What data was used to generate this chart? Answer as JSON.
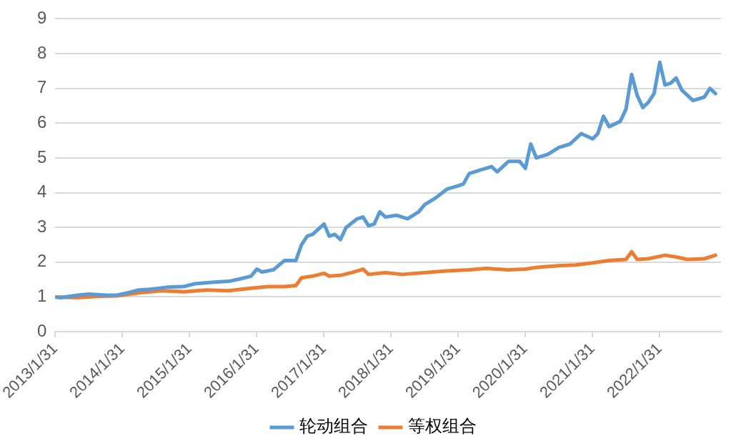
{
  "chart_data": {
    "type": "line",
    "legend": "bottom",
    "grid": "y",
    "marker": "none",
    "line_style": "solid",
    "xlim": [
      "2013-01-31",
      "2022-12-31"
    ],
    "xticks": [
      {
        "value": "2013-01-31",
        "label": "2013/1/31"
      },
      {
        "value": "2014-01-31",
        "label": "2014/1/31"
      },
      {
        "value": "2015-01-31",
        "label": "2015/1/31"
      },
      {
        "value": "2016-01-31",
        "label": "2016/1/31"
      },
      {
        "value": "2017-01-31",
        "label": "2017/1/31"
      },
      {
        "value": "2018-01-31",
        "label": "2018/1/31"
      },
      {
        "value": "2019-01-31",
        "label": "2019/1/31"
      },
      {
        "value": "2020-01-31",
        "label": "2020/1/31"
      },
      {
        "value": "2021-01-31",
        "label": "2021/1/31"
      },
      {
        "value": "2022-01-31",
        "label": "2022/1/31"
      }
    ],
    "ylim": [
      0,
      9
    ],
    "yticks": [
      0,
      1,
      2,
      3,
      4,
      5,
      6,
      7,
      8,
      9
    ],
    "series": [
      {
        "name": "轮动组合",
        "color": "#5b9bd5",
        "x": [
          "2013-01-31",
          "2013-03",
          "2013-06",
          "2013-08",
          "2013-11",
          "2014-01",
          "2014-03",
          "2014-05",
          "2014-07",
          "2014-10",
          "2015-01",
          "2015-03",
          "2015-06",
          "2015-09",
          "2015-11",
          "2016-01",
          "2016-02",
          "2016-03",
          "2016-05",
          "2016-07",
          "2016-09",
          "2016-10",
          "2016-11",
          "2016-12",
          "2017-01",
          "2017-02",
          "2017-03",
          "2017-04",
          "2017-05",
          "2017-06",
          "2017-08",
          "2017-09",
          "2017-10",
          "2017-11",
          "2017-12",
          "2018-01",
          "2018-03",
          "2018-05",
          "2018-07",
          "2018-08",
          "2018-10",
          "2018-12",
          "2019-02",
          "2019-03",
          "2019-04",
          "2019-06",
          "2019-08",
          "2019-09",
          "2019-11",
          "2020-01",
          "2020-02",
          "2020-03",
          "2020-04",
          "2020-06",
          "2020-08",
          "2020-10",
          "2020-12",
          "2021-02",
          "2021-03",
          "2021-04",
          "2021-05",
          "2021-07",
          "2021-08",
          "2021-09",
          "2021-10",
          "2021-11",
          "2021-12",
          "2022-01",
          "2022-02",
          "2022-03",
          "2022-04",
          "2022-05",
          "2022-06",
          "2022-08",
          "2022-09",
          "2022-10",
          "2022-11",
          "2022-12"
        ],
        "values": [
          1.0,
          0.98,
          1.05,
          1.08,
          1.05,
          1.05,
          1.12,
          1.2,
          1.22,
          1.28,
          1.3,
          1.38,
          1.42,
          1.45,
          1.52,
          1.6,
          1.8,
          1.72,
          1.78,
          2.05,
          2.05,
          2.5,
          2.75,
          2.8,
          2.95,
          3.1,
          2.75,
          2.8,
          2.65,
          3.0,
          3.25,
          3.3,
          3.05,
          3.1,
          3.45,
          3.3,
          3.35,
          3.25,
          3.45,
          3.65,
          3.85,
          4.1,
          4.2,
          4.25,
          4.55,
          4.65,
          4.75,
          4.6,
          4.9,
          4.9,
          4.7,
          5.4,
          5.0,
          5.1,
          5.3,
          5.4,
          5.7,
          5.55,
          5.7,
          6.2,
          5.9,
          6.05,
          6.4,
          7.4,
          6.8,
          6.45,
          6.6,
          6.85,
          7.75,
          7.1,
          7.15,
          7.3,
          6.95,
          6.65,
          6.7,
          6.75,
          7.0,
          6.85
        ]
      },
      {
        "name": "等权组合",
        "color": "#ed7d31",
        "x": [
          "2013-01-31",
          "2013-06",
          "2013-10",
          "2014-01",
          "2014-05",
          "2014-09",
          "2015-01",
          "2015-05",
          "2015-09",
          "2016-01",
          "2016-04",
          "2016-07",
          "2016-09",
          "2016-10",
          "2016-12",
          "2017-02",
          "2017-03",
          "2017-05",
          "2017-07",
          "2017-09",
          "2017-10",
          "2018-01",
          "2018-04",
          "2018-08",
          "2018-12",
          "2019-04",
          "2019-07",
          "2019-11",
          "2020-02",
          "2020-04",
          "2020-08",
          "2020-11",
          "2021-02",
          "2021-05",
          "2021-08",
          "2021-09",
          "2021-10",
          "2021-12",
          "2022-03",
          "2022-05",
          "2022-07",
          "2022-10",
          "2022-12"
        ],
        "values": [
          1.0,
          0.98,
          1.02,
          1.03,
          1.12,
          1.18,
          1.15,
          1.2,
          1.18,
          1.25,
          1.3,
          1.3,
          1.33,
          1.55,
          1.6,
          1.68,
          1.6,
          1.62,
          1.7,
          1.8,
          1.65,
          1.7,
          1.65,
          1.7,
          1.75,
          1.78,
          1.82,
          1.78,
          1.8,
          1.85,
          1.9,
          1.92,
          1.98,
          2.05,
          2.08,
          2.3,
          2.08,
          2.1,
          2.2,
          2.15,
          2.08,
          2.1,
          2.2
        ]
      }
    ]
  }
}
